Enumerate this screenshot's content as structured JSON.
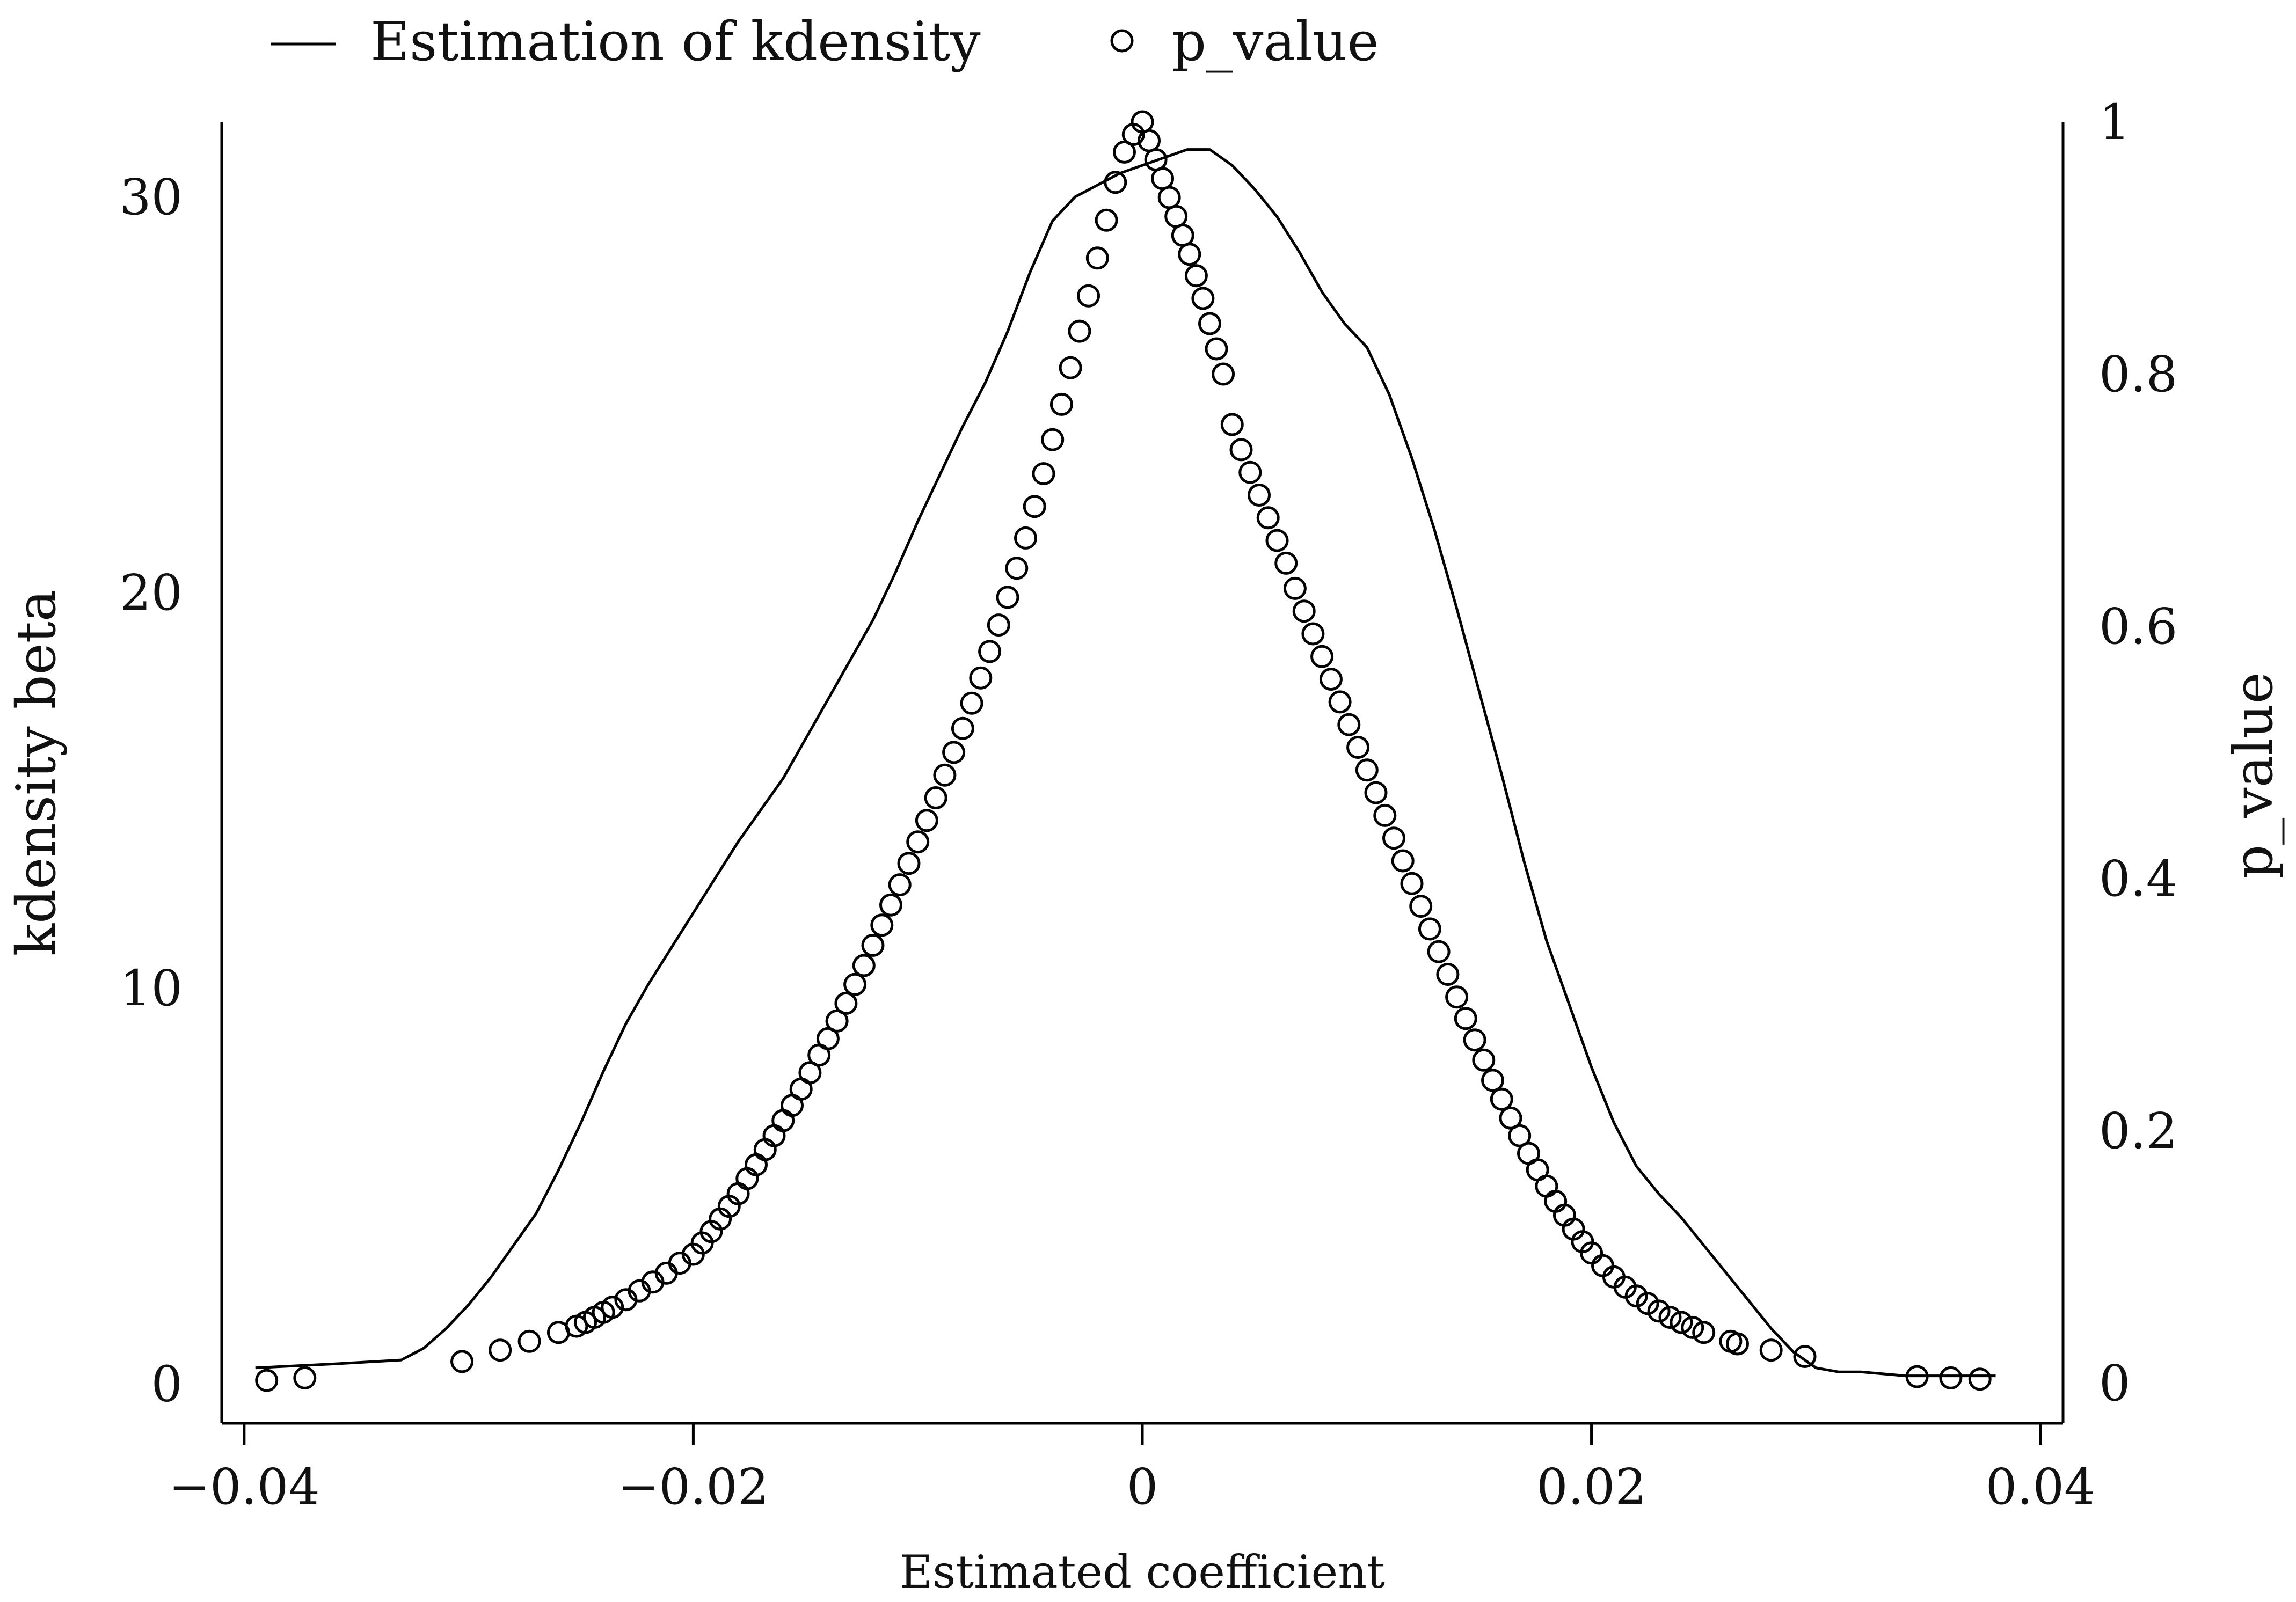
{
  "chart_data": {
    "type": "line+scatter",
    "title": "",
    "xlabel": "Estimated coefficient",
    "ylabel_left": "kdensity beta",
    "ylabel_right": "p_value",
    "xlim": [
      -0.041,
      0.041
    ],
    "ylim_left": [
      -1,
      31.9
    ],
    "ylim_right": [
      -0.032,
      1.0
    ],
    "x_ticks": [
      -0.04,
      -0.02,
      0,
      0.02,
      0.04
    ],
    "x_tick_labels": [
      "−0.04",
      "−0.02",
      "0",
      "0.02",
      "0.04"
    ],
    "y_left_ticks": [
      0,
      10,
      20,
      30
    ],
    "y_left_tick_labels": [
      "0",
      "10",
      "20",
      "30"
    ],
    "y_right_ticks": [
      0,
      0.2,
      0.4,
      0.6,
      0.8,
      1
    ],
    "y_right_tick_labels": [
      "0",
      "0.2",
      "0.4",
      "0.6",
      "0.8",
      "1"
    ],
    "grid": false,
    "legend": {
      "position": "top",
      "entries": [
        {
          "label": "Estimation of kdensity",
          "marker": "line"
        },
        {
          "label": "p_value",
          "marker": "circle"
        }
      ]
    },
    "series": [
      {
        "name": "Estimation of kdensity",
        "axis": "left",
        "kind": "line",
        "x": [
          -0.0395,
          -0.036,
          -0.033,
          -0.032,
          -0.031,
          -0.03,
          -0.029,
          -0.028,
          -0.027,
          -0.026,
          -0.025,
          -0.024,
          -0.023,
          -0.022,
          -0.021,
          -0.02,
          -0.019,
          -0.018,
          -0.017,
          -0.016,
          -0.015,
          -0.014,
          -0.013,
          -0.012,
          -0.011,
          -0.01,
          -0.009,
          -0.008,
          -0.007,
          -0.006,
          -0.005,
          -0.004,
          -0.003,
          -0.002,
          -0.001,
          0.0,
          0.001,
          0.002,
          0.003,
          0.004,
          0.005,
          0.006,
          0.007,
          0.008,
          0.009,
          0.01,
          0.011,
          0.012,
          0.013,
          0.014,
          0.015,
          0.016,
          0.017,
          0.018,
          0.019,
          0.02,
          0.021,
          0.022,
          0.023,
          0.024,
          0.025,
          0.026,
          0.027,
          0.028,
          0.029,
          0.03,
          0.031,
          0.032,
          0.034,
          0.036,
          0.038
        ],
        "y": [
          0.4,
          0.5,
          0.6,
          0.9,
          1.4,
          2.0,
          2.7,
          3.5,
          4.3,
          5.4,
          6.6,
          7.9,
          9.1,
          10.1,
          11.0,
          11.9,
          12.8,
          13.7,
          14.5,
          15.3,
          16.3,
          17.3,
          18.3,
          19.3,
          20.5,
          21.8,
          23.0,
          24.2,
          25.3,
          26.6,
          28.1,
          29.4,
          30.0,
          30.3,
          30.6,
          30.8,
          31.0,
          31.2,
          31.2,
          30.8,
          30.2,
          29.5,
          28.6,
          27.6,
          26.8,
          26.2,
          25.0,
          23.4,
          21.6,
          19.6,
          17.5,
          15.4,
          13.2,
          11.2,
          9.6,
          8.0,
          6.6,
          5.5,
          4.8,
          4.2,
          3.5,
          2.8,
          2.1,
          1.4,
          0.8,
          0.4,
          0.3,
          0.3,
          0.2,
          0.2,
          0.2
        ]
      },
      {
        "name": "p_value",
        "axis": "right",
        "kind": "scatter",
        "x": [
          -0.039,
          -0.0373,
          -0.0303,
          -0.0286,
          -0.0273,
          -0.026,
          -0.0252,
          -0.0248,
          -0.0244,
          -0.024,
          -0.0236,
          -0.023,
          -0.0224,
          -0.0218,
          -0.0212,
          -0.0206,
          -0.02,
          -0.0196,
          -0.0192,
          -0.0188,
          -0.0184,
          -0.018,
          -0.0176,
          -0.0172,
          -0.0168,
          -0.0164,
          -0.016,
          -0.0156,
          -0.0152,
          -0.0148,
          -0.0144,
          -0.014,
          -0.0136,
          -0.0132,
          -0.0128,
          -0.0124,
          -0.012,
          -0.0116,
          -0.0112,
          -0.0108,
          -0.0104,
          -0.01,
          -0.0096,
          -0.0092,
          -0.0088,
          -0.0084,
          -0.008,
          -0.0076,
          -0.0072,
          -0.0068,
          -0.0064,
          -0.006,
          -0.0056,
          -0.0052,
          -0.0048,
          -0.0044,
          -0.004,
          -0.0036,
          -0.0032,
          -0.0028,
          -0.0024,
          -0.002,
          -0.0016,
          -0.0012,
          -0.0008,
          -0.0004,
          0.0,
          0.0003,
          0.0006,
          0.0009,
          0.0012,
          0.0015,
          0.0018,
          0.0021,
          0.0024,
          0.0027,
          0.003,
          0.0033,
          0.0036,
          0.004,
          0.0044,
          0.0048,
          0.0052,
          0.0056,
          0.006,
          0.0064,
          0.0068,
          0.0072,
          0.0076,
          0.008,
          0.0084,
          0.0088,
          0.0092,
          0.0096,
          0.01,
          0.0104,
          0.0108,
          0.0112,
          0.0116,
          0.012,
          0.0124,
          0.0128,
          0.0132,
          0.0136,
          0.014,
          0.0144,
          0.0148,
          0.0152,
          0.0156,
          0.016,
          0.0164,
          0.0168,
          0.0172,
          0.0176,
          0.018,
          0.0184,
          0.0188,
          0.0192,
          0.0196,
          0.02,
          0.0205,
          0.021,
          0.0215,
          0.022,
          0.0225,
          0.023,
          0.0235,
          0.024,
          0.0245,
          0.025,
          0.0262,
          0.0265,
          0.028,
          0.0295,
          0.0345,
          0.036,
          0.0373
        ],
        "y": [
          0.002,
          0.004,
          0.017,
          0.026,
          0.033,
          0.04,
          0.045,
          0.048,
          0.052,
          0.056,
          0.06,
          0.066,
          0.073,
          0.08,
          0.087,
          0.095,
          0.102,
          0.111,
          0.12,
          0.13,
          0.14,
          0.15,
          0.162,
          0.173,
          0.185,
          0.196,
          0.208,
          0.22,
          0.233,
          0.246,
          0.26,
          0.273,
          0.287,
          0.301,
          0.316,
          0.331,
          0.347,
          0.363,
          0.379,
          0.395,
          0.412,
          0.429,
          0.446,
          0.464,
          0.482,
          0.5,
          0.519,
          0.539,
          0.559,
          0.58,
          0.601,
          0.623,
          0.646,
          0.67,
          0.695,
          0.721,
          0.748,
          0.776,
          0.805,
          0.834,
          0.862,
          0.892,
          0.922,
          0.952,
          0.976,
          0.99,
          1.0,
          0.985,
          0.97,
          0.955,
          0.94,
          0.925,
          0.91,
          0.895,
          0.878,
          0.86,
          0.84,
          0.82,
          0.8,
          0.76,
          0.74,
          0.722,
          0.704,
          0.686,
          0.668,
          0.65,
          0.63,
          0.612,
          0.594,
          0.576,
          0.558,
          0.54,
          0.522,
          0.504,
          0.486,
          0.468,
          0.45,
          0.432,
          0.414,
          0.396,
          0.378,
          0.36,
          0.342,
          0.324,
          0.306,
          0.289,
          0.272,
          0.256,
          0.24,
          0.225,
          0.21,
          0.196,
          0.182,
          0.169,
          0.156,
          0.144,
          0.133,
          0.122,
          0.112,
          0.103,
          0.093,
          0.084,
          0.076,
          0.069,
          0.063,
          0.057,
          0.052,
          0.048,
          0.044,
          0.04,
          0.033,
          0.031,
          0.026,
          0.021,
          0.005,
          0.004,
          0.003
        ]
      }
    ]
  }
}
